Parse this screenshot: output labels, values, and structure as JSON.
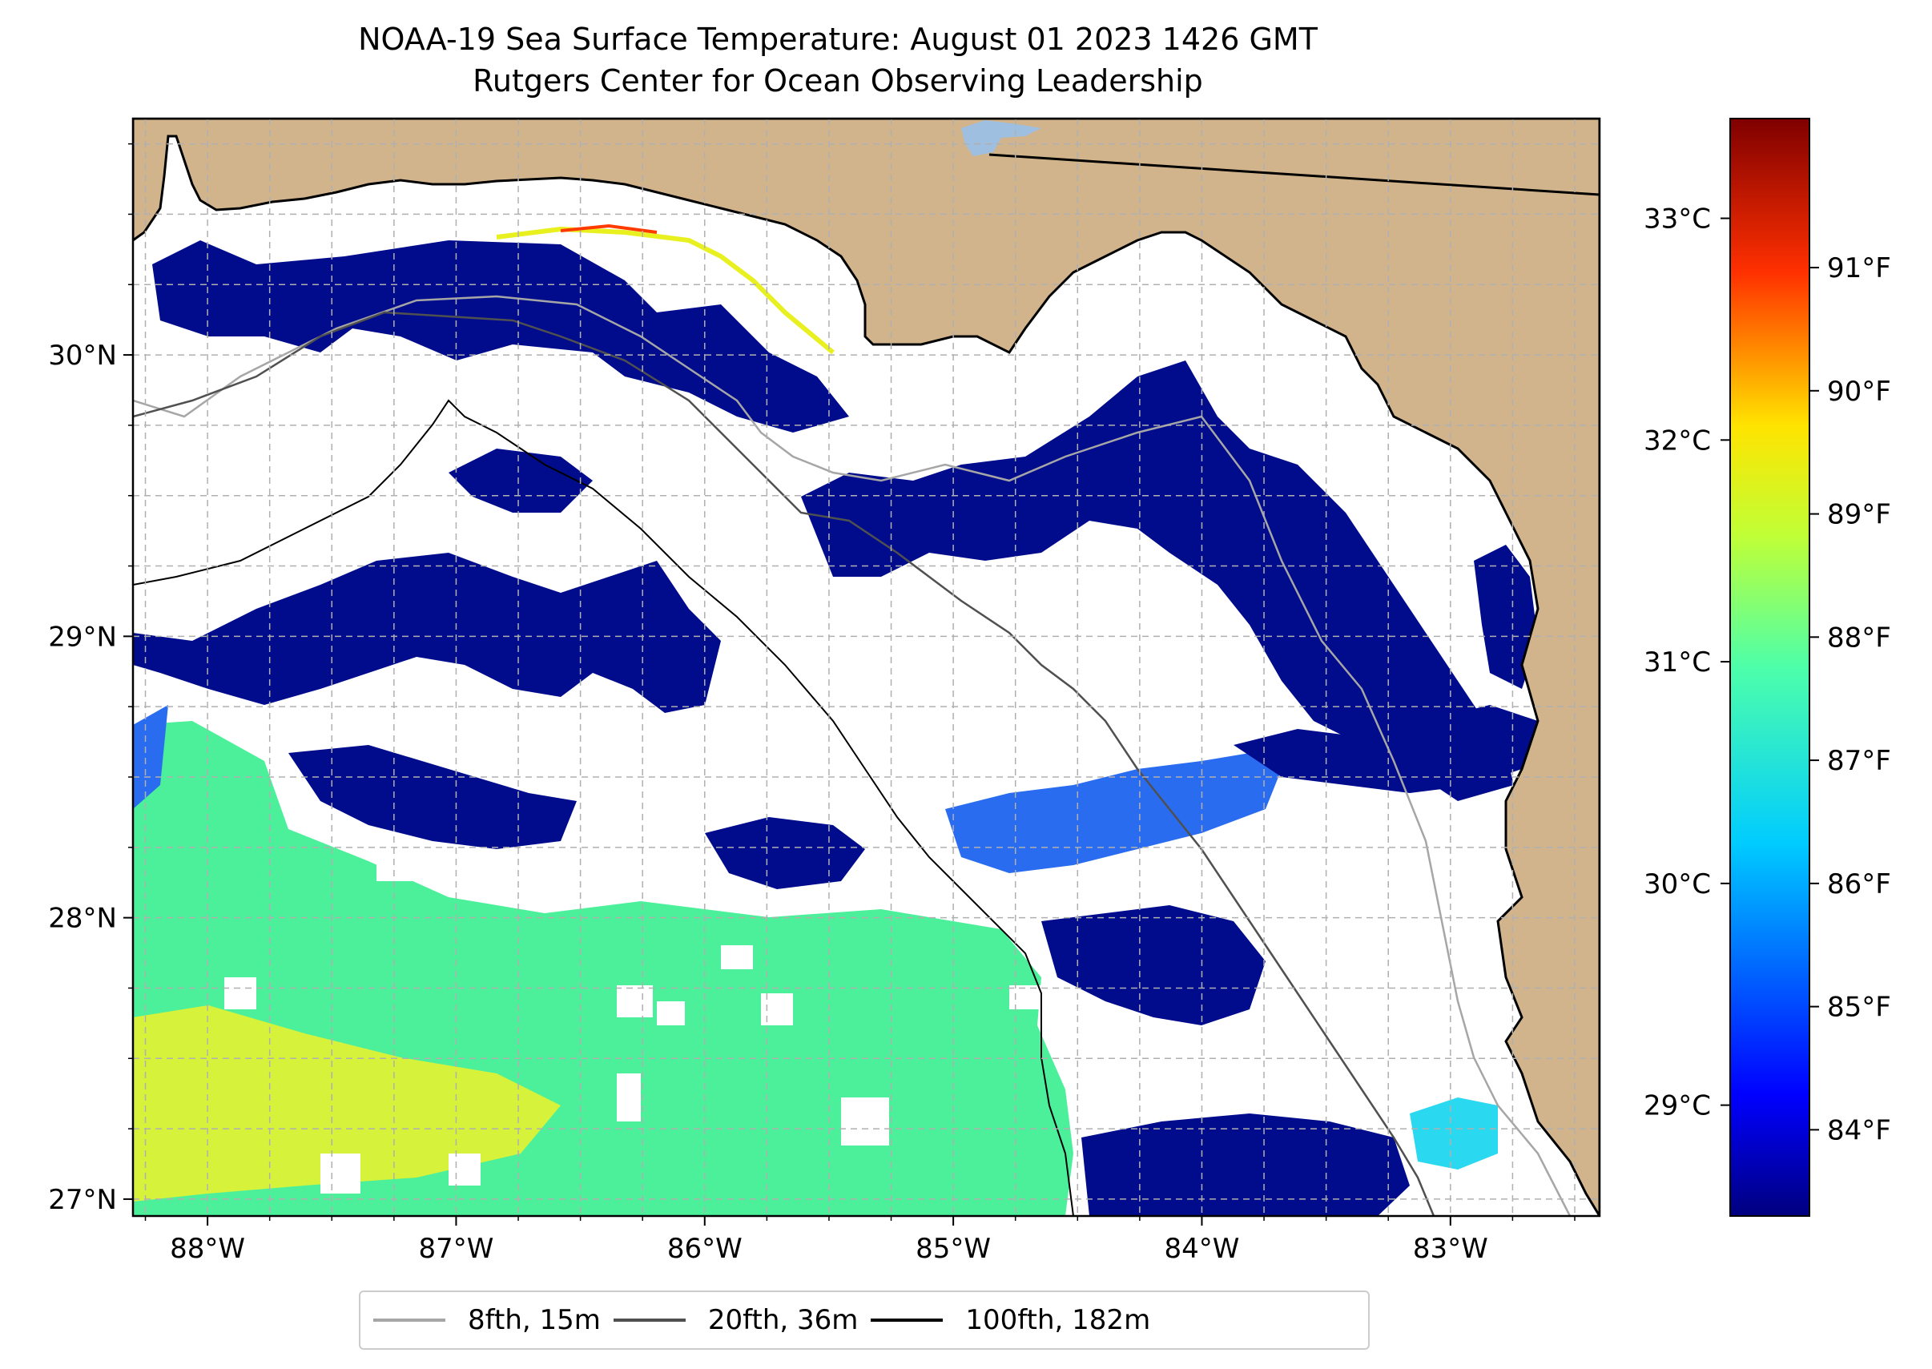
{
  "title": {
    "line1": "NOAA-19 Sea Surface Temperature: August 01 2023 1426 GMT",
    "line2": "Rutgers Center for Ocean Observing Leadership"
  },
  "map": {
    "lon_range": [
      -88.3,
      -82.4
    ],
    "lat_range": [
      26.94,
      30.84
    ],
    "lon_ticks": [
      "88°W",
      "87°W",
      "86°W",
      "85°W",
      "84°W",
      "83°W"
    ],
    "lat_ticks": [
      "27°N",
      "28°N",
      "29°N",
      "30°N"
    ],
    "gridlines": true
  },
  "colorbar": {
    "colormap": "jet",
    "celsius_ticks": [
      "29°C",
      "30°C",
      "31°C",
      "32°C",
      "33°C"
    ],
    "fahrenheit_ticks": [
      "84°F",
      "85°F",
      "86°F",
      "87°F",
      "88°F",
      "89°F",
      "90°F",
      "91°F"
    ]
  },
  "legend": {
    "items": [
      {
        "label": "8fth, 15m",
        "color": "#a6a6a6"
      },
      {
        "label": "20fth, 36m",
        "color": "#505050"
      },
      {
        "label": "100fth, 182m",
        "color": "#000000"
      }
    ]
  },
  "colors": {
    "land": "#d2b48c",
    "lake": "#9fbfe0",
    "cold": "#000c8c",
    "cool": "#2a6cf0",
    "mid": "#2ad8f0",
    "warm": "#4cf09a",
    "hot": "#d6f23a",
    "no_data": "#ffffff"
  }
}
